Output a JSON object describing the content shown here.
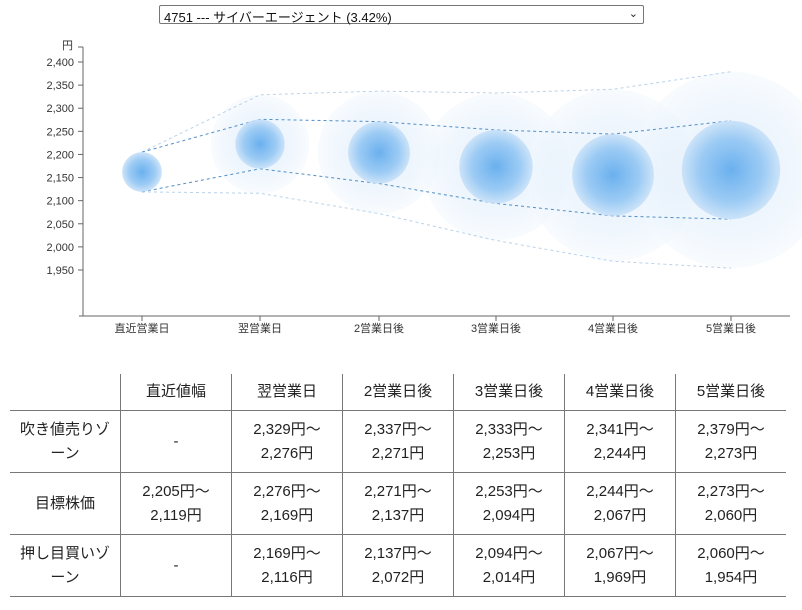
{
  "selector": {
    "selected": "4751 --- サイバーエージェント (3.42%)",
    "chevron": "⌄"
  },
  "chart_data": {
    "type": "bubble",
    "y_unit": "円",
    "ylim": [
      1925,
      2425
    ],
    "y_ticks": [
      1950,
      2000,
      2050,
      2100,
      2150,
      2200,
      2250,
      2300,
      2350,
      2400
    ],
    "y_tick_labels": [
      "1,950",
      "2,000",
      "2,050",
      "2,100",
      "2,150",
      "2,200",
      "2,250",
      "2,300",
      "2,350",
      "2,400"
    ],
    "categories": [
      "直近営業日",
      "翌営業日",
      "2営業日後",
      "3営業日後",
      "4営業日後",
      "5営業日後"
    ],
    "target": [
      {
        "center": 2162,
        "high": 2205,
        "low": 2119
      },
      {
        "center": 2222.5,
        "high": 2276,
        "low": 2169
      },
      {
        "center": 2204,
        "high": 2271,
        "low": 2137
      },
      {
        "center": 2173.5,
        "high": 2253,
        "low": 2094
      },
      {
        "center": 2155.5,
        "high": 2244,
        "low": 2067
      },
      {
        "center": 2166.5,
        "high": 2273,
        "low": 2060
      }
    ],
    "outer": [
      null,
      {
        "high": 2329,
        "low": 2116
      },
      {
        "high": 2337,
        "low": 2072
      },
      {
        "high": 2333,
        "low": 2014
      },
      {
        "high": 2341,
        "low": 1969
      },
      {
        "high": 2379,
        "low": 1954
      }
    ],
    "grid": false
  },
  "table": {
    "headers": [
      "",
      "直近値幅",
      "翌営業日",
      "2営業日後",
      "3営業日後",
      "4営業日後",
      "5営業日後"
    ],
    "rows": [
      {
        "label": "吹き値売りゾーン",
        "cells": [
          [
            "-"
          ],
          [
            "2,329円〜",
            "2,276円"
          ],
          [
            "2,337円〜",
            "2,271円"
          ],
          [
            "2,333円〜",
            "2,253円"
          ],
          [
            "2,341円〜",
            "2,244円"
          ],
          [
            "2,379円〜",
            "2,273円"
          ]
        ]
      },
      {
        "label": "目標株価",
        "cells": [
          [
            "2,205円〜",
            "2,119円"
          ],
          [
            "2,276円〜",
            "2,169円"
          ],
          [
            "2,271円〜",
            "2,137円"
          ],
          [
            "2,253円〜",
            "2,094円"
          ],
          [
            "2,244円〜",
            "2,067円"
          ],
          [
            "2,273円〜",
            "2,060円"
          ]
        ]
      },
      {
        "label": "押し目買いゾーン",
        "cells": [
          [
            "-"
          ],
          [
            "2,169円〜",
            "2,116円"
          ],
          [
            "2,137円〜",
            "2,072円"
          ],
          [
            "2,094円〜",
            "2,014円"
          ],
          [
            "2,067円〜",
            "1,969円"
          ],
          [
            "2,060円〜",
            "1,954円"
          ]
        ]
      }
    ]
  }
}
